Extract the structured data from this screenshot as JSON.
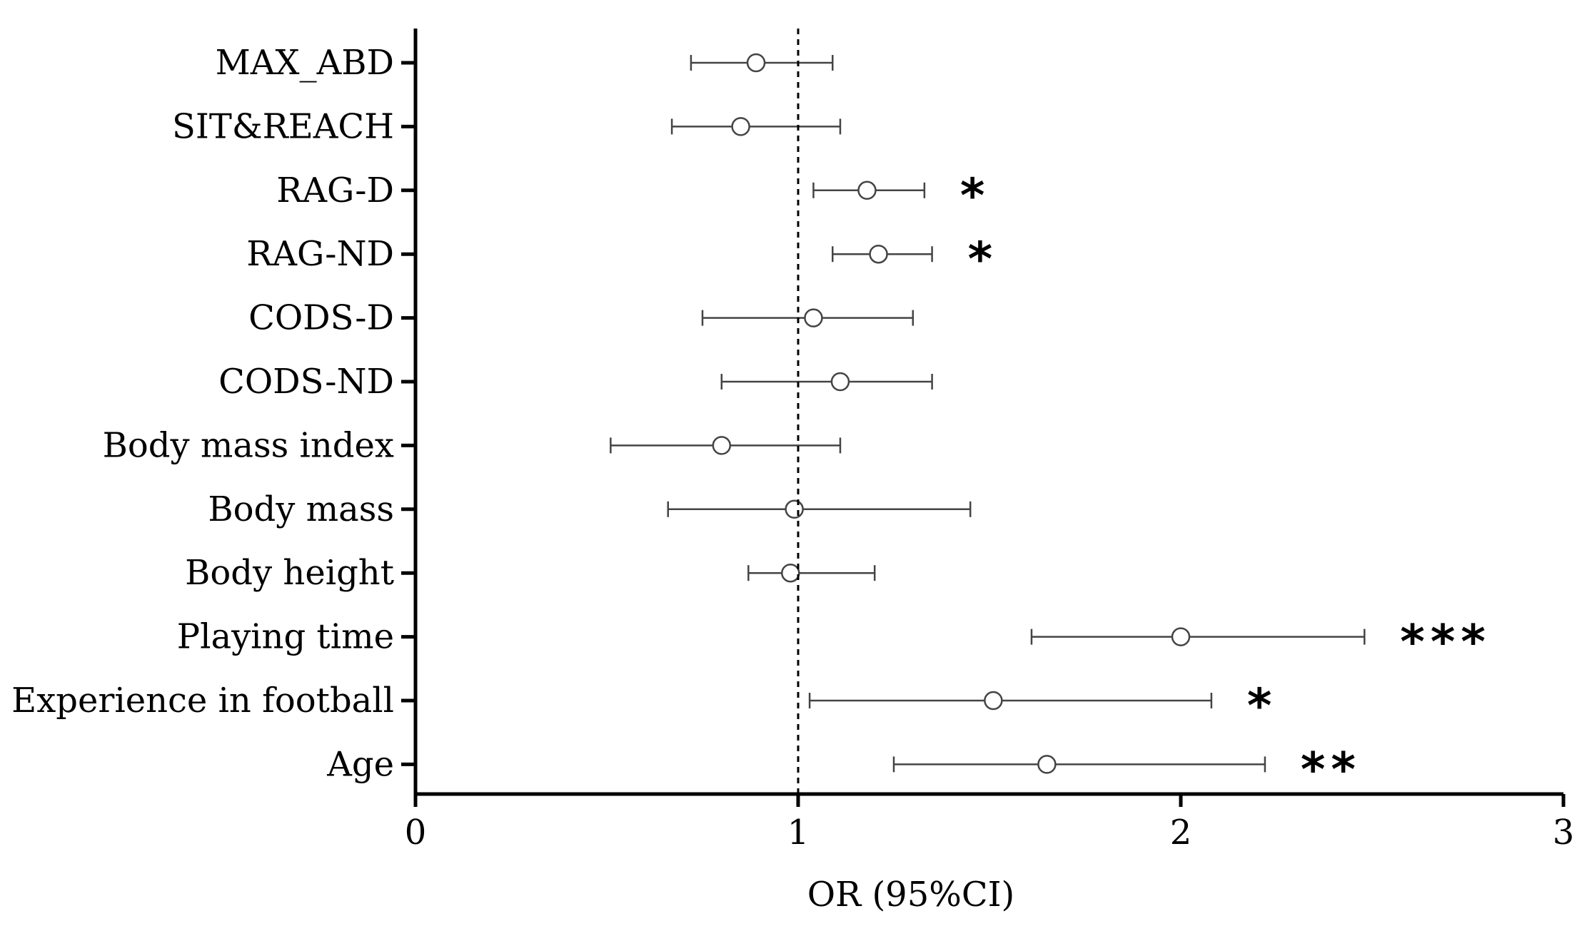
{
  "chart_data": {
    "type": "scatter",
    "subtype": "forest-plot",
    "title": "",
    "xlabel": "OR (95%CI)",
    "ylabel": "",
    "xlim": [
      0,
      3
    ],
    "xticks": [
      "0",
      "1",
      "2",
      "3"
    ],
    "reference_line": 1,
    "grid": false,
    "legend": "none",
    "colors": {
      "marker": "#444444",
      "axis": "#000000",
      "reference": "#000000"
    },
    "rows": [
      {
        "label": "MAX_ABD",
        "or": 0.89,
        "lower": 0.72,
        "upper": 1.09,
        "sig": ""
      },
      {
        "label": "SIT&REACH",
        "or": 0.85,
        "lower": 0.67,
        "upper": 1.11,
        "sig": ""
      },
      {
        "label": "RAG-D",
        "or": 1.18,
        "lower": 1.04,
        "upper": 1.33,
        "sig": "*"
      },
      {
        "label": "RAG-ND",
        "or": 1.21,
        "lower": 1.09,
        "upper": 1.35,
        "sig": "*"
      },
      {
        "label": "CODS-D",
        "or": 1.04,
        "lower": 0.75,
        "upper": 1.3,
        "sig": ""
      },
      {
        "label": "CODS-ND",
        "or": 1.11,
        "lower": 0.8,
        "upper": 1.35,
        "sig": ""
      },
      {
        "label": "Body mass index",
        "or": 0.8,
        "lower": 0.51,
        "upper": 1.11,
        "sig": ""
      },
      {
        "label": "Body mass",
        "or": 0.99,
        "lower": 0.66,
        "upper": 1.45,
        "sig": ""
      },
      {
        "label": "Body height",
        "or": 0.98,
        "lower": 0.87,
        "upper": 1.2,
        "sig": ""
      },
      {
        "label": "Playing time",
        "or": 2.0,
        "lower": 1.61,
        "upper": 2.48,
        "sig": "***"
      },
      {
        "label": "Experience in football",
        "or": 1.51,
        "lower": 1.03,
        "upper": 2.08,
        "sig": "*"
      },
      {
        "label": "Age",
        "or": 1.65,
        "lower": 1.25,
        "upper": 2.22,
        "sig": "**"
      }
    ]
  }
}
